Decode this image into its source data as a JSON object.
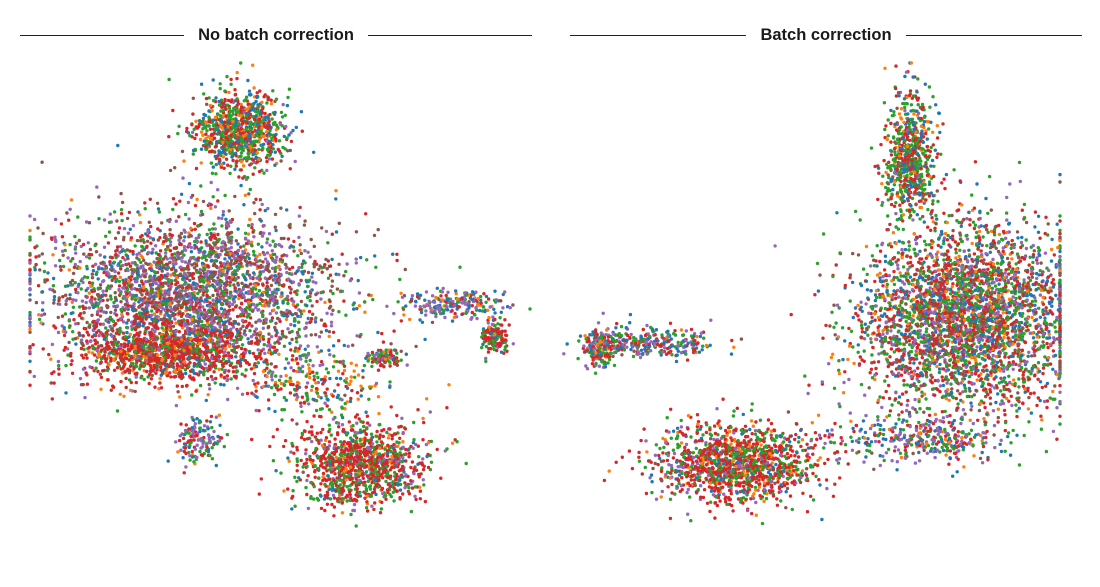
{
  "figure": {
    "panels": [
      {
        "title": "No batch correction"
      },
      {
        "title": "Batch correction"
      }
    ]
  },
  "palette": [
    "#1f77b4",
    "#ff7f0e",
    "#2ca02c",
    "#d62728",
    "#9467bd",
    "#8c564b"
  ],
  "chart_data": [
    {
      "type": "scatter",
      "title": "No batch correction",
      "xlabel": "",
      "ylabel": "",
      "xlim": [
        0,
        100
      ],
      "ylim": [
        0,
        100
      ],
      "grid": false,
      "axes_visible": false,
      "legend": "none",
      "series_count": 6,
      "clusters": [
        {
          "center": [
            42,
            86
          ],
          "spread": [
            9,
            8
          ],
          "size": 900,
          "mix": [
            0.18,
            0.1,
            0.3,
            0.34,
            0.04,
            0.04
          ]
        },
        {
          "center": [
            33,
            52
          ],
          "spread": [
            28,
            16
          ],
          "size": 3000,
          "mix": [
            0.1,
            0.06,
            0.18,
            0.18,
            0.25,
            0.23
          ]
        },
        {
          "center": [
            27,
            40
          ],
          "spread": [
            18,
            6
          ],
          "size": 1000,
          "mix": [
            0.04,
            0.12,
            0.16,
            0.62,
            0.02,
            0.04
          ]
        },
        {
          "center": [
            85,
            50
          ],
          "spread": [
            11,
            3
          ],
          "size": 220,
          "mix": [
            0.25,
            0.1,
            0.15,
            0.15,
            0.3,
            0.05
          ]
        },
        {
          "center": [
            93,
            43
          ],
          "spread": [
            3,
            3
          ],
          "size": 130,
          "mix": [
            0.1,
            0.05,
            0.3,
            0.5,
            0.05,
            0.0
          ]
        },
        {
          "center": [
            66,
            17
          ],
          "spread": [
            13,
            9
          ],
          "size": 1100,
          "mix": [
            0.05,
            0.06,
            0.28,
            0.49,
            0.1,
            0.02
          ]
        },
        {
          "center": [
            34,
            22
          ],
          "spread": [
            5,
            5
          ],
          "size": 140,
          "mix": [
            0.2,
            0.1,
            0.2,
            0.2,
            0.3,
            0.0
          ]
        },
        {
          "center": [
            57,
            34
          ],
          "spread": [
            14,
            6
          ],
          "size": 220,
          "mix": [
            0.1,
            0.2,
            0.25,
            0.25,
            0.15,
            0.05
          ]
        },
        {
          "center": [
            71,
            39
          ],
          "spread": [
            4,
            2
          ],
          "size": 90,
          "mix": [
            0.1,
            0.05,
            0.3,
            0.3,
            0.1,
            0.15
          ]
        }
      ]
    },
    {
      "type": "scatter",
      "title": "Batch correction",
      "xlabel": "",
      "ylabel": "",
      "xlim": [
        0,
        100
      ],
      "ylim": [
        0,
        100
      ],
      "grid": false,
      "axes_visible": false,
      "legend": "none",
      "series_count": 6,
      "clusters": [
        {
          "center": [
            70,
            80
          ],
          "spread": [
            5,
            14
          ],
          "size": 700,
          "mix": [
            0.15,
            0.1,
            0.35,
            0.3,
            0.05,
            0.05
          ]
        },
        {
          "center": [
            81,
            47
          ],
          "spread": [
            21,
            19
          ],
          "size": 3400,
          "mix": [
            0.14,
            0.1,
            0.25,
            0.25,
            0.14,
            0.12
          ]
        },
        {
          "center": [
            35,
            17
          ],
          "spread": [
            16,
            8
          ],
          "size": 1300,
          "mix": [
            0.08,
            0.08,
            0.25,
            0.45,
            0.1,
            0.04
          ]
        },
        {
          "center": [
            18,
            42
          ],
          "spread": [
            14,
            3
          ],
          "size": 320,
          "mix": [
            0.25,
            0.05,
            0.2,
            0.2,
            0.25,
            0.05
          ]
        },
        {
          "center": [
            8,
            41
          ],
          "spread": [
            3,
            4
          ],
          "size": 150,
          "mix": [
            0.15,
            0.1,
            0.25,
            0.3,
            0.2,
            0.0
          ]
        },
        {
          "center": [
            72,
            22
          ],
          "spread": [
            18,
            5
          ],
          "size": 350,
          "mix": [
            0.15,
            0.1,
            0.2,
            0.2,
            0.3,
            0.05
          ]
        }
      ]
    }
  ]
}
